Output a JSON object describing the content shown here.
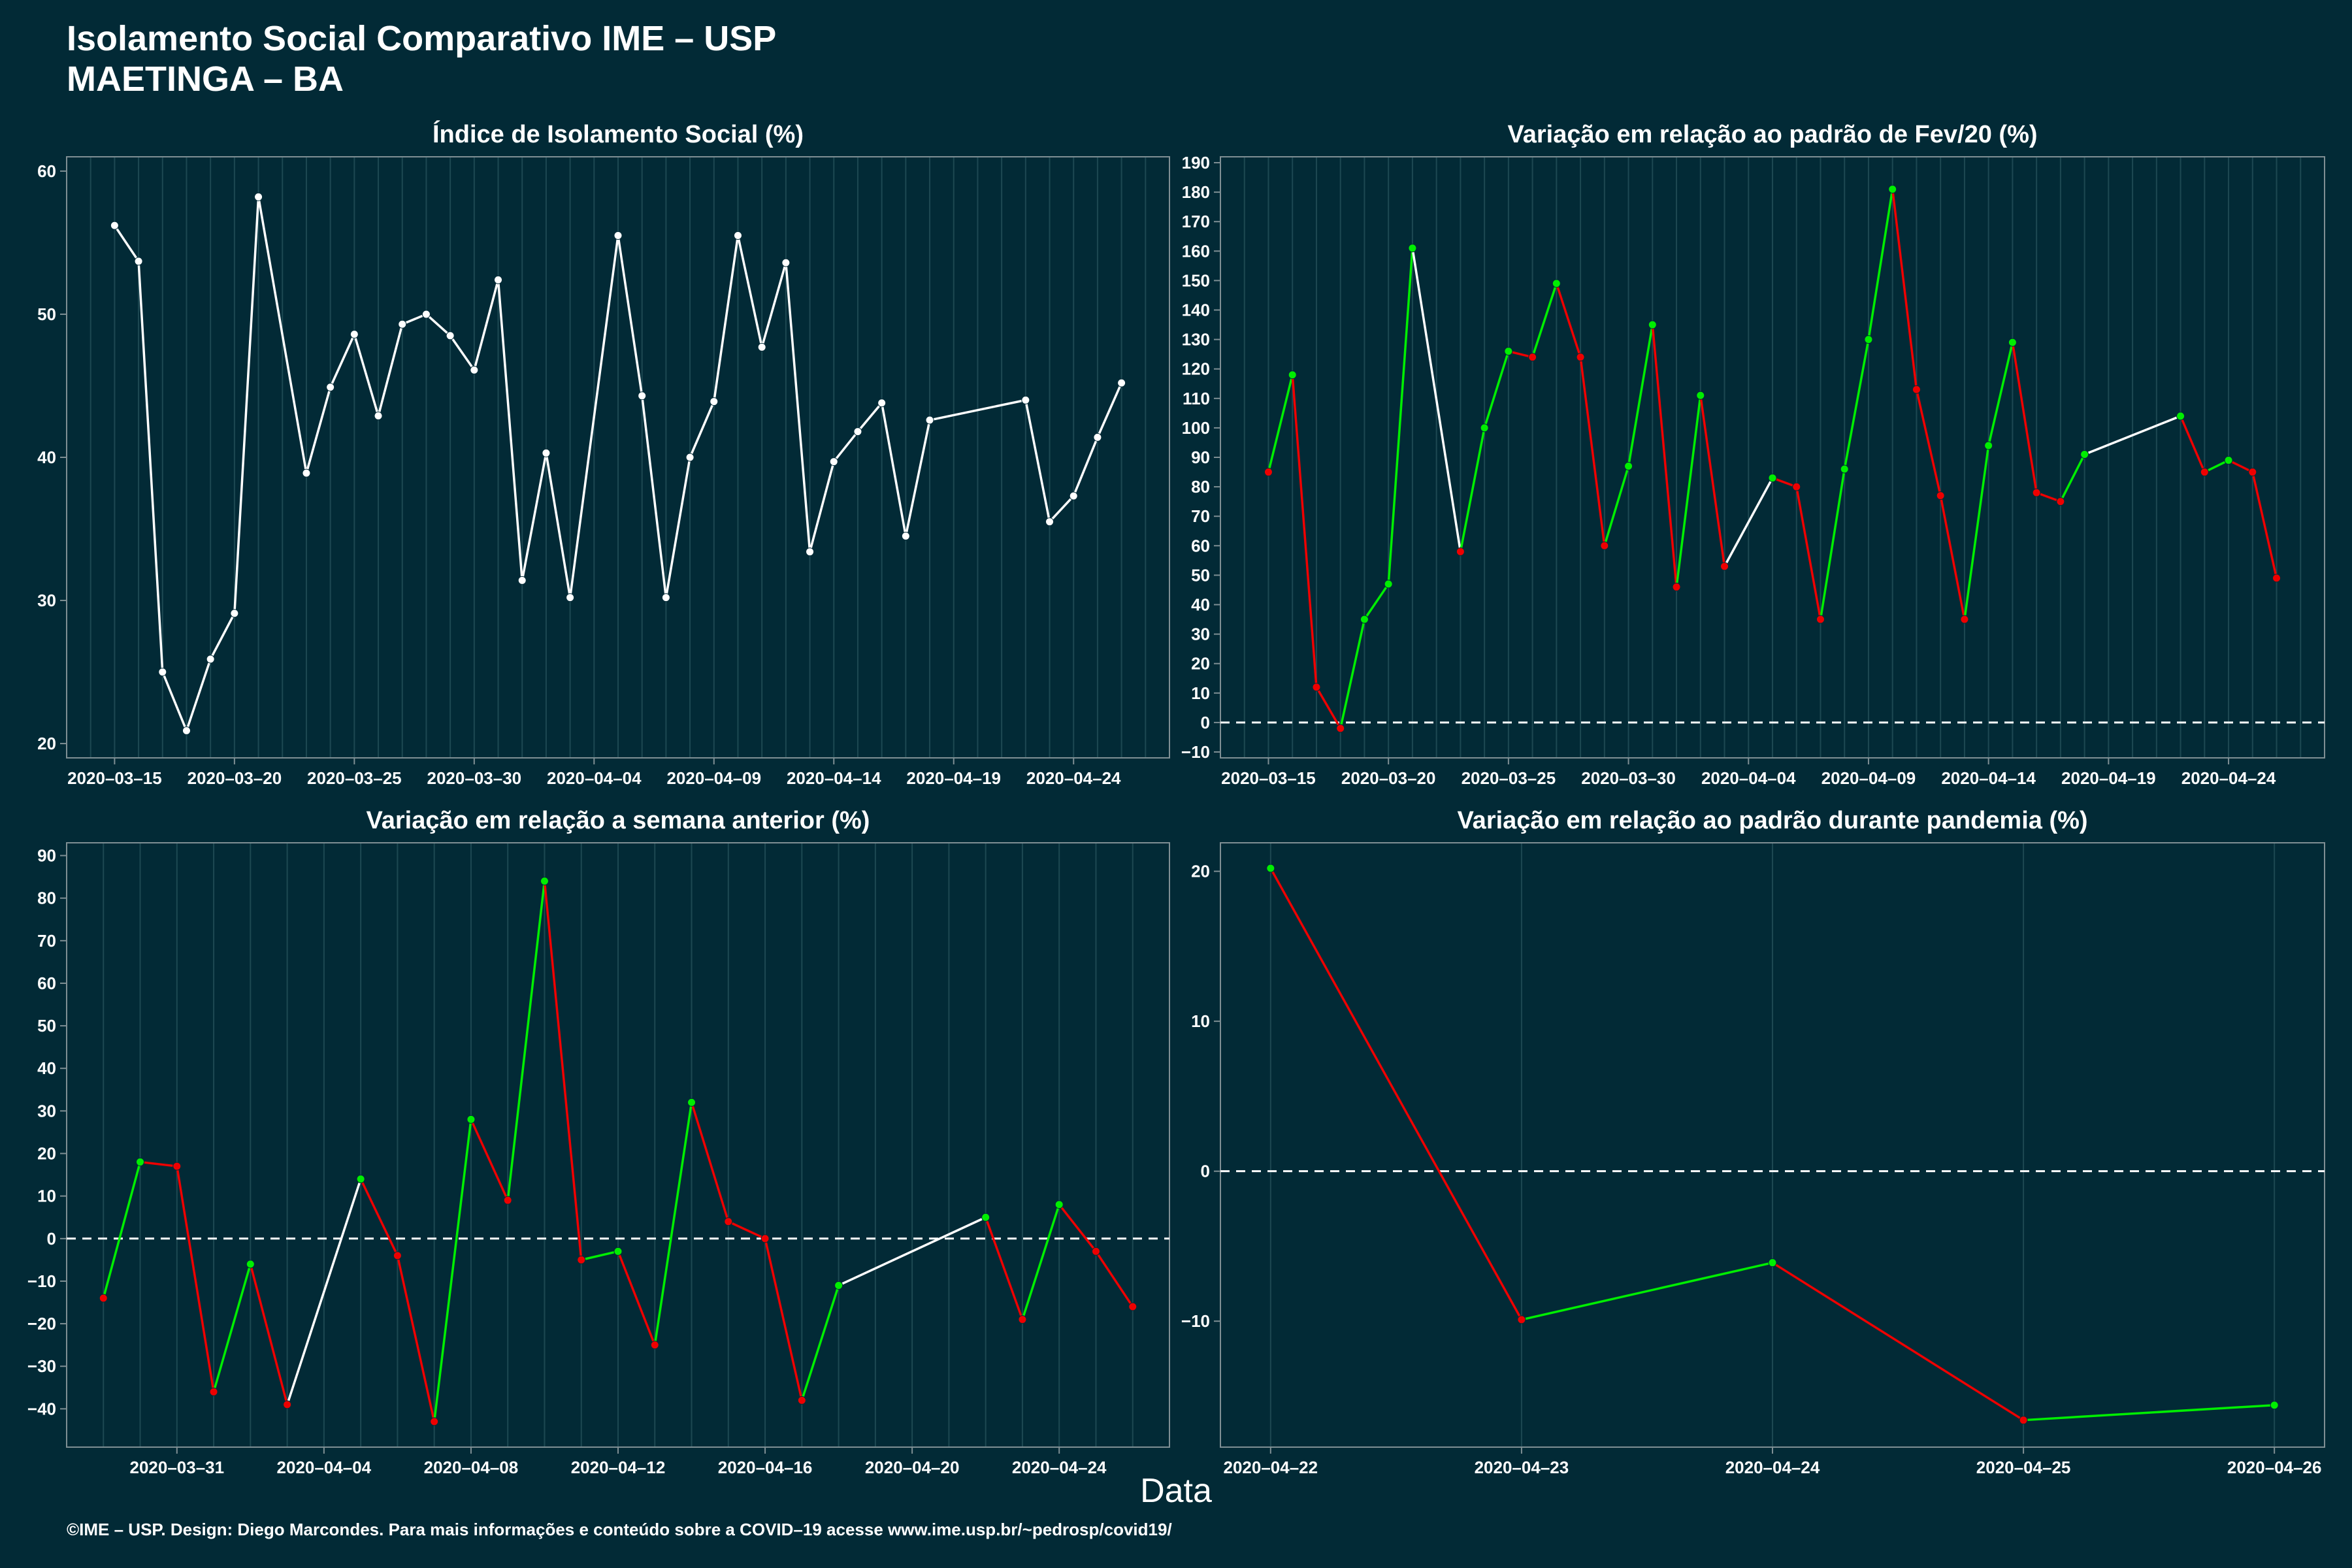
{
  "header": {
    "title_line1": "Isolamento Social Comparativo IME – USP",
    "title_line2": "MAETINGA – BA"
  },
  "x_axis_label": "Data",
  "footer": "©IME – USP. Design: Diego Marcondes. Para mais informações e conteúdo sobre a COVID–19 acesse www.ime.usp.br/~pedrosp/covid19/",
  "colors": {
    "background": "#022a36",
    "positive": "#00ee00",
    "negative": "#ee0000",
    "neutral": "#ffffff",
    "grid": "#1d4852",
    "axis": "#7f8f94"
  },
  "chart_data": [
    {
      "type": "line",
      "title": "Índice de Isolamento Social (%)",
      "x": [
        "2020-03-15",
        "2020-03-16",
        "2020-03-17",
        "2020-03-18",
        "2020-03-19",
        "2020-03-20",
        "2020-03-21",
        "2020-03-23",
        "2020-03-24",
        "2020-03-25",
        "2020-03-26",
        "2020-03-27",
        "2020-03-28",
        "2020-03-29",
        "2020-03-30",
        "2020-03-31",
        "2020-04-01",
        "2020-04-02",
        "2020-04-03",
        "2020-04-05",
        "2020-04-06",
        "2020-04-07",
        "2020-04-08",
        "2020-04-09",
        "2020-04-10",
        "2020-04-11",
        "2020-04-12",
        "2020-04-13",
        "2020-04-14",
        "2020-04-15",
        "2020-04-16",
        "2020-04-17",
        "2020-04-18",
        "2020-04-22",
        "2020-04-23",
        "2020-04-24",
        "2020-04-25",
        "2020-04-26"
      ],
      "values": [
        56.2,
        53.7,
        25.0,
        20.9,
        25.9,
        29.1,
        58.2,
        38.9,
        44.9,
        48.6,
        42.9,
        49.3,
        50.0,
        48.5,
        46.1,
        52.4,
        31.4,
        40.3,
        30.2,
        55.5,
        44.3,
        30.2,
        40.0,
        43.9,
        55.5,
        47.7,
        53.6,
        33.4,
        39.7,
        41.8,
        43.8,
        34.5,
        42.6,
        44.0,
        35.5,
        37.3,
        41.4,
        45.2
      ],
      "ylim": [
        19,
        61
      ],
      "yticks": [
        20,
        30,
        40,
        50,
        60
      ],
      "xticks": [
        "2020-03-15",
        "2020-03-20",
        "2020-03-25",
        "2020-03-30",
        "2020-04-04",
        "2020-04-09",
        "2020-04-14",
        "2020-04-19",
        "2020-04-24"
      ],
      "xlim": [
        "2020-03-13",
        "2020-04-28"
      ],
      "color_mode": "white",
      "zero_line": false
    },
    {
      "type": "line",
      "title": "Variação em relação ao padrão de Fev/20 (%)",
      "x": [
        "2020-03-15",
        "2020-03-16",
        "2020-03-17",
        "2020-03-18",
        "2020-03-19",
        "2020-03-20",
        "2020-03-21",
        "2020-03-23",
        "2020-03-24",
        "2020-03-25",
        "2020-03-26",
        "2020-03-27",
        "2020-03-28",
        "2020-03-29",
        "2020-03-30",
        "2020-03-31",
        "2020-04-01",
        "2020-04-02",
        "2020-04-03",
        "2020-04-05",
        "2020-04-06",
        "2020-04-07",
        "2020-04-08",
        "2020-04-09",
        "2020-04-10",
        "2020-04-11",
        "2020-04-12",
        "2020-04-13",
        "2020-04-14",
        "2020-04-15",
        "2020-04-16",
        "2020-04-17",
        "2020-04-18",
        "2020-04-22",
        "2020-04-23",
        "2020-04-24",
        "2020-04-25",
        "2020-04-26"
      ],
      "values": [
        85,
        118,
        12,
        -2,
        35,
        47,
        161,
        58,
        100,
        126,
        124,
        149,
        124,
        60,
        87,
        135,
        46,
        111,
        53,
        83,
        80,
        35,
        86,
        130,
        181,
        113,
        77,
        35,
        94,
        129,
        78,
        75,
        91,
        104,
        85,
        89,
        85,
        49
      ],
      "ylim": [
        -12,
        192
      ],
      "yticks": [
        -10,
        0,
        10,
        20,
        30,
        40,
        50,
        60,
        70,
        80,
        90,
        100,
        110,
        120,
        130,
        140,
        150,
        160,
        170,
        180,
        190
      ],
      "xticks": [
        "2020-03-15",
        "2020-03-20",
        "2020-03-25",
        "2020-03-30",
        "2020-04-04",
        "2020-04-09",
        "2020-04-14",
        "2020-04-19",
        "2020-04-24"
      ],
      "xlim": [
        "2020-03-13",
        "2020-04-28"
      ],
      "color_mode": "sign",
      "zero_line": true
    },
    {
      "type": "line",
      "title": "Variação em relação a semana anterior (%)",
      "x": [
        "2020-03-29",
        "2020-03-30",
        "2020-03-31",
        "2020-04-01",
        "2020-04-02",
        "2020-04-03",
        "2020-04-05",
        "2020-04-06",
        "2020-04-07",
        "2020-04-08",
        "2020-04-09",
        "2020-04-10",
        "2020-04-11",
        "2020-04-12",
        "2020-04-13",
        "2020-04-14",
        "2020-04-15",
        "2020-04-16",
        "2020-04-17",
        "2020-04-18",
        "2020-04-22",
        "2020-04-23",
        "2020-04-24",
        "2020-04-25",
        "2020-04-26"
      ],
      "values": [
        -14,
        18,
        17,
        -36,
        -6,
        -39,
        14,
        -4,
        -43,
        28,
        9,
        84,
        -5,
        -3,
        -25,
        32,
        4,
        0,
        -38,
        -11,
        5,
        -19,
        8,
        -3,
        -16
      ],
      "ylim": [
        -49,
        93
      ],
      "yticks": [
        -40,
        -30,
        -20,
        -10,
        0,
        10,
        20,
        30,
        40,
        50,
        60,
        70,
        80,
        90
      ],
      "xticks": [
        "2020-03-31",
        "2020-04-04",
        "2020-04-08",
        "2020-04-12",
        "2020-04-16",
        "2020-04-20",
        "2020-04-24"
      ],
      "xlim": [
        "2020-03-28",
        "2020-04-27"
      ],
      "color_mode": "sign",
      "zero_line": true
    },
    {
      "type": "line",
      "title": "Variação em relação ao padrão durante pandemia (%)",
      "x": [
        "2020-04-22",
        "2020-04-23",
        "2020-04-24",
        "2020-04-25",
        "2020-04-26"
      ],
      "values": [
        20.2,
        -9.9,
        -6.1,
        -16.6,
        -15.6
      ],
      "ylim": [
        -18.4,
        21.9
      ],
      "yticks": [
        -10,
        0,
        10,
        20
      ],
      "xticks": [
        "2020-04-22",
        "2020-04-23",
        "2020-04-24",
        "2020-04-25",
        "2020-04-26"
      ],
      "xlim": [
        "2020-04-21.8",
        "2020-04-26.2"
      ],
      "color_mode": "sign",
      "zero_line": true
    }
  ]
}
